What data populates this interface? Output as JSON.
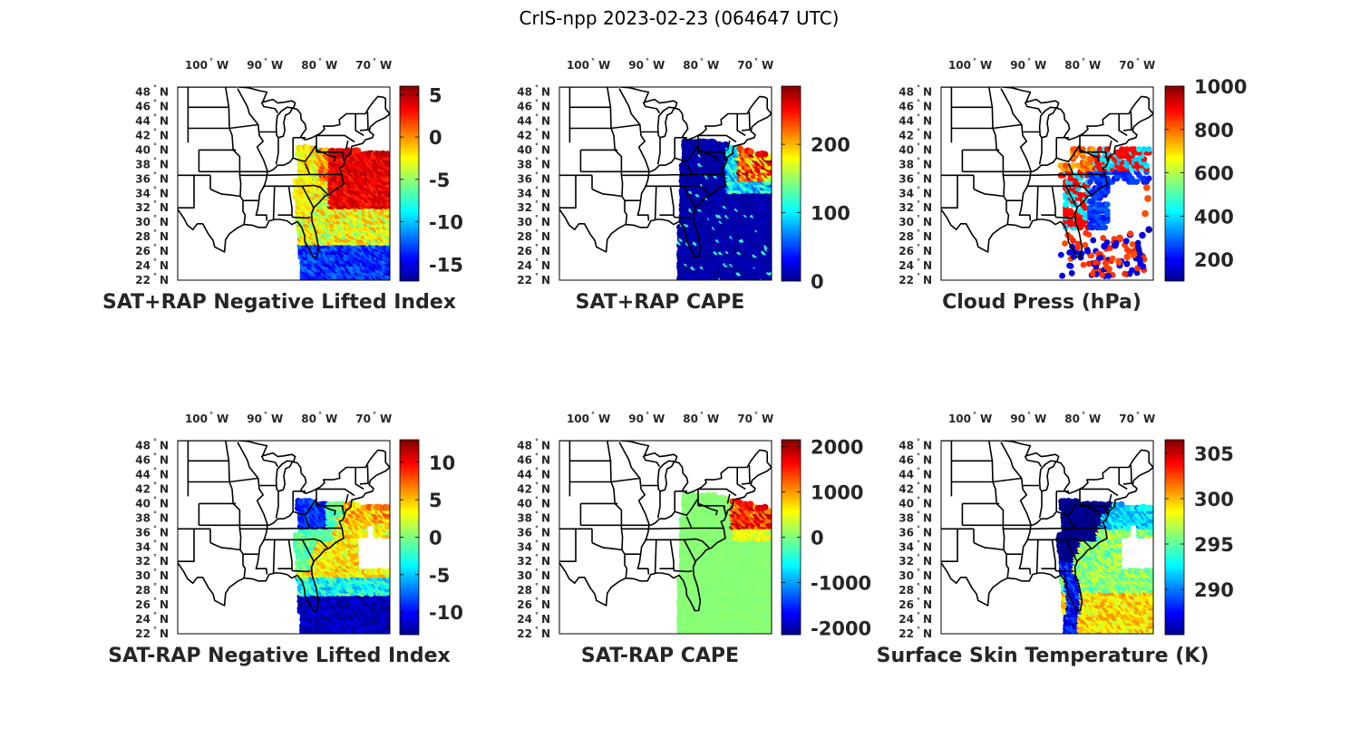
{
  "figure": {
    "title": "CrIS-npp 2023-02-23 (064647 UTC)",
    "lon_ticks": [
      {
        "num": "100",
        "hem": "W"
      },
      {
        "num": "90",
        "hem": "W"
      },
      {
        "num": "80",
        "hem": "W"
      },
      {
        "num": "70",
        "hem": "W"
      }
    ],
    "lat_ticks": [
      {
        "num": "48",
        "hem": "N"
      },
      {
        "num": "46",
        "hem": "N"
      },
      {
        "num": "44",
        "hem": "N"
      },
      {
        "num": "42",
        "hem": "N"
      },
      {
        "num": "40",
        "hem": "N"
      },
      {
        "num": "38",
        "hem": "N"
      },
      {
        "num": "36",
        "hem": "N"
      },
      {
        "num": "34",
        "hem": "N"
      },
      {
        "num": "32",
        "hem": "N"
      },
      {
        "num": "30",
        "hem": "N"
      },
      {
        "num": "28",
        "hem": "N"
      },
      {
        "num": "26",
        "hem": "N"
      },
      {
        "num": "24",
        "hem": "N"
      },
      {
        "num": "22",
        "hem": "N"
      }
    ],
    "colormap": "jet"
  },
  "chart_data": [
    {
      "type": "heatmap",
      "title": "SAT+RAP Negative Lifted Index",
      "field": "nli",
      "clim": [
        -17,
        6
      ],
      "ticks": [
        "5",
        "0",
        "-5",
        "-10",
        "-15"
      ],
      "tick_values": [
        5,
        0,
        -5,
        -10,
        -15
      ]
    },
    {
      "type": "heatmap",
      "title": "SAT+RAP CAPE",
      "field": "cape",
      "clim": [
        0,
        285
      ],
      "ticks": [
        "200",
        "100",
        "0"
      ],
      "tick_values": [
        200,
        100,
        0
      ]
    },
    {
      "type": "scatter",
      "title": "Cloud Press (hPa)",
      "field": "cloud",
      "clim": [
        100,
        1000
      ],
      "ticks": [
        "1000",
        "800",
        "600",
        "400",
        "200"
      ],
      "tick_values": [
        1000,
        800,
        600,
        400,
        200
      ]
    },
    {
      "type": "heatmap",
      "title": "SAT-RAP Negative Lifted Index",
      "field": "dnli",
      "clim": [
        -13,
        13
      ],
      "ticks": [
        "10",
        "5",
        "0",
        "-5",
        "-10"
      ],
      "tick_values": [
        10,
        5,
        0,
        -5,
        -10
      ]
    },
    {
      "type": "heatmap",
      "title": "SAT-RAP CAPE",
      "field": "dcape",
      "clim": [
        -2150,
        2150
      ],
      "ticks": [
        "2000",
        "1000",
        "0",
        "-1000",
        "-2000"
      ],
      "tick_values": [
        2000,
        1000,
        0,
        -1000,
        -2000
      ]
    },
    {
      "type": "heatmap",
      "title": "Surface Skin Temperature (K)",
      "field": "skin",
      "clim": [
        285,
        306.5
      ],
      "ticks": [
        "305",
        "300",
        "295",
        "290"
      ],
      "tick_values": [
        305,
        300,
        295,
        290
      ]
    }
  ]
}
